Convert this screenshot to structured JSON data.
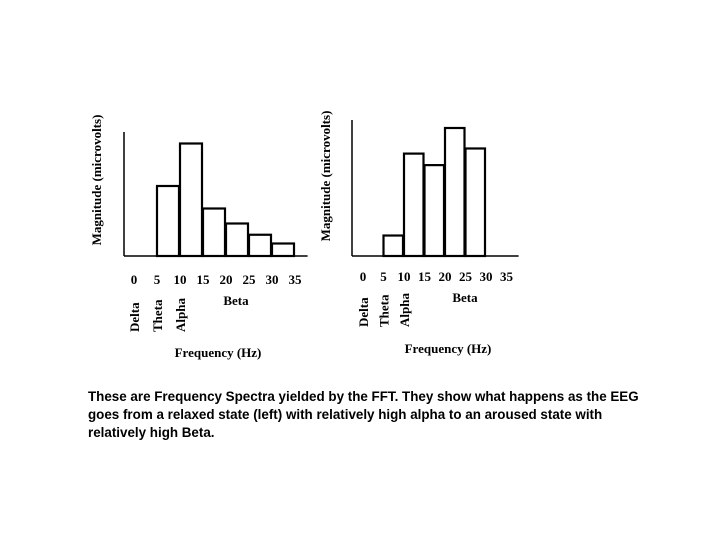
{
  "chart_data": [
    {
      "type": "bar",
      "name": "relaxed",
      "x_ticks": [
        "0",
        "5",
        "10",
        "15",
        "20",
        "25",
        "30",
        "35"
      ],
      "bands": [
        "Delta",
        "Theta",
        "Alpha"
      ],
      "beta_label": "Beta",
      "xlabel": "Frequency (Hz)",
      "ylabel": "Magnitude (microvolts)",
      "ylim": [
        0,
        10
      ],
      "bars": [
        {
          "x_start": 5,
          "x_end": 10,
          "value": 5.6
        },
        {
          "x_start": 10,
          "x_end": 15,
          "value": 9.0
        },
        {
          "x_start": 15,
          "x_end": 20,
          "value": 3.8
        },
        {
          "x_start": 20,
          "x_end": 25,
          "value": 2.6
        },
        {
          "x_start": 25,
          "x_end": 30,
          "value": 1.7
        },
        {
          "x_start": 30,
          "x_end": 35,
          "value": 1.0
        }
      ]
    },
    {
      "type": "bar",
      "name": "aroused",
      "x_ticks": [
        "0",
        "5",
        "10",
        "15",
        "20",
        "25",
        "30",
        "35"
      ],
      "bands": [
        "Delta",
        "Theta",
        "Alpha"
      ],
      "beta_label": "Beta",
      "xlabel": "Frequency (Hz)",
      "ylabel": "Magnitude (microvolts)",
      "ylim": [
        0,
        10
      ],
      "bars": [
        {
          "x_start": 5,
          "x_end": 10,
          "value": 1.6
        },
        {
          "x_start": 10,
          "x_end": 15,
          "value": 8.0
        },
        {
          "x_start": 15,
          "x_end": 20,
          "value": 7.1
        },
        {
          "x_start": 20,
          "x_end": 25,
          "value": 10.0
        },
        {
          "x_start": 25,
          "x_end": 30,
          "value": 8.4
        }
      ]
    }
  ],
  "caption": "These are Frequency Spectra yielded by the FFT. They show what happens as the EEG goes from a relaxed state (left) with relatively high alpha to an aroused state with relatively high Beta."
}
